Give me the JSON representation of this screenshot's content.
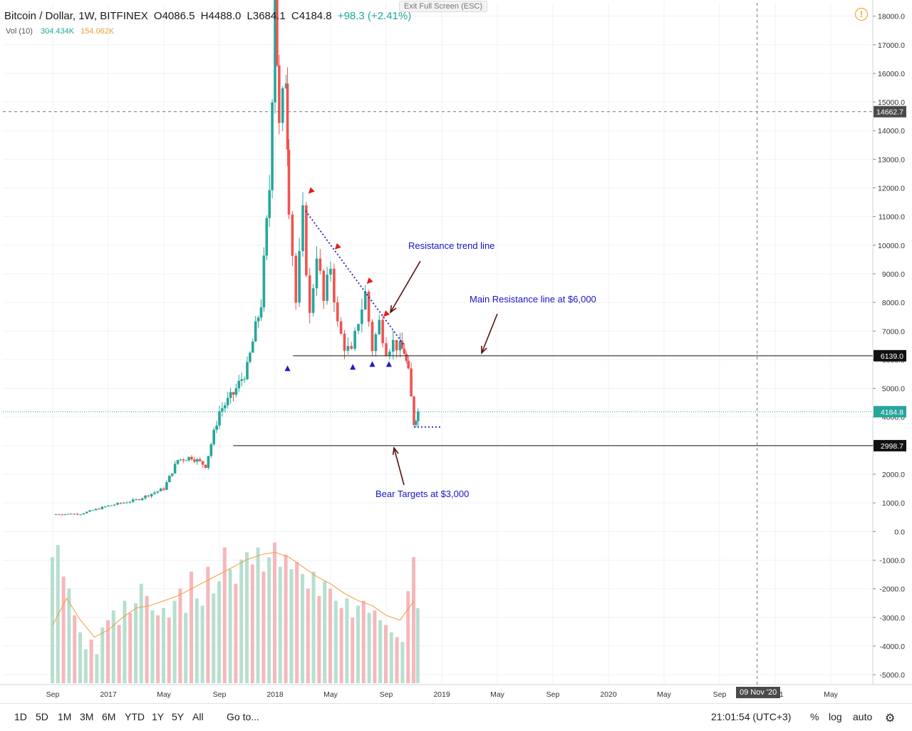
{
  "header": {
    "title": "Bitcoin / Dollar, 1W, BITFINEX",
    "open": "O4086.5",
    "high": "H4488.0",
    "low": "L3684.1",
    "close": "C4184.8",
    "change": "+98.3 (+2.41%)",
    "exit_fullscreen": "Exit Full Screen (ESC)"
  },
  "volume_legend": {
    "label": "Vol (10)",
    "v1": "304.434K",
    "v2": "154.062K"
  },
  "chart_data": {
    "type": "candlestick",
    "title": "Bitcoin / Dollar, 1W, BITFINEX",
    "ylim": [
      -5300,
      18600
    ],
    "y_ticks": [
      -5000,
      -4000,
      -3000,
      -2000,
      -1000,
      0,
      1000,
      2000,
      3000,
      4000,
      5000,
      6000,
      7000,
      8000,
      9000,
      10000,
      11000,
      12000,
      13000,
      14000,
      15000,
      16000,
      17000,
      18000
    ],
    "x_ticks": [
      {
        "label": "Sep",
        "t": 0
      },
      {
        "label": "2017",
        "t": 4
      },
      {
        "label": "May",
        "t": 8
      },
      {
        "label": "Sep",
        "t": 12
      },
      {
        "label": "2018",
        "t": 16
      },
      {
        "label": "May",
        "t": 20
      },
      {
        "label": "Sep",
        "t": 24
      },
      {
        "label": "2019",
        "t": 28
      },
      {
        "label": "May",
        "t": 32
      },
      {
        "label": "Sep",
        "t": 36
      },
      {
        "label": "2020",
        "t": 40
      },
      {
        "label": "May",
        "t": 44
      },
      {
        "label": "Sep",
        "t": 48
      },
      {
        "label": "2021",
        "t": 52
      },
      {
        "label": "May",
        "t": 56
      }
    ],
    "price_path": [
      [
        0,
        600
      ],
      [
        2,
        620
      ],
      [
        4,
        900
      ],
      [
        6,
        1100
      ],
      [
        8,
        1500
      ],
      [
        9,
        2500
      ],
      [
        10,
        2600
      ],
      [
        11,
        2300
      ],
      [
        12,
        4200
      ],
      [
        13,
        4800
      ],
      [
        14,
        5700
      ],
      [
        15,
        8000
      ],
      [
        15.6,
        12000
      ],
      [
        16,
        19000
      ],
      [
        16.3,
        14000
      ],
      [
        16.8,
        16000
      ],
      [
        17,
        11500
      ],
      [
        17.5,
        8000
      ],
      [
        18,
        11000
      ],
      [
        18.5,
        7500
      ],
      [
        19,
        9800
      ],
      [
        19.5,
        8000
      ],
      [
        20,
        9300
      ],
      [
        20.5,
        7200
      ],
      [
        21,
        6500
      ],
      [
        21.5,
        6200
      ],
      [
        22,
        7400
      ],
      [
        22.5,
        8300
      ],
      [
        23,
        6400
      ],
      [
        23.5,
        7300
      ],
      [
        24,
        6400
      ],
      [
        24.5,
        6600
      ],
      [
        25,
        6400
      ],
      [
        25.3,
        6300
      ],
      [
        25.6,
        5500
      ],
      [
        26,
        3800
      ],
      [
        26.3,
        4185
      ]
    ],
    "volume_bars": [
      {
        "t": 0.0,
        "v": 5.2,
        "up": true
      },
      {
        "t": 0.4,
        "v": 5.7,
        "up": true
      },
      {
        "t": 0.8,
        "v": 4.4,
        "up": false
      },
      {
        "t": 1.2,
        "v": 3.9,
        "up": true
      },
      {
        "t": 1.6,
        "v": 2.8,
        "up": false
      },
      {
        "t": 2.0,
        "v": 2.1,
        "up": true
      },
      {
        "t": 2.4,
        "v": 1.4,
        "up": true
      },
      {
        "t": 2.8,
        "v": 1.8,
        "up": false
      },
      {
        "t": 3.2,
        "v": 1.2,
        "up": true
      },
      {
        "t": 3.6,
        "v": 2.3,
        "up": true
      },
      {
        "t": 4.0,
        "v": 2.6,
        "up": false
      },
      {
        "t": 4.4,
        "v": 3.0,
        "up": true
      },
      {
        "t": 4.8,
        "v": 2.4,
        "up": false
      },
      {
        "t": 5.2,
        "v": 3.4,
        "up": true
      },
      {
        "t": 5.6,
        "v": 2.9,
        "up": false
      },
      {
        "t": 6.0,
        "v": 3.3,
        "up": true
      },
      {
        "t": 6.4,
        "v": 4.1,
        "up": true
      },
      {
        "t": 6.8,
        "v": 3.6,
        "up": false
      },
      {
        "t": 7.2,
        "v": 3.0,
        "up": true
      },
      {
        "t": 7.6,
        "v": 2.8,
        "up": false
      },
      {
        "t": 8.0,
        "v": 3.1,
        "up": true
      },
      {
        "t": 8.4,
        "v": 2.7,
        "up": false
      },
      {
        "t": 8.8,
        "v": 3.4,
        "up": true
      },
      {
        "t": 9.2,
        "v": 3.9,
        "up": false
      },
      {
        "t": 9.6,
        "v": 2.9,
        "up": true
      },
      {
        "t": 10.0,
        "v": 4.6,
        "up": false
      },
      {
        "t": 10.4,
        "v": 3.5,
        "up": true
      },
      {
        "t": 10.8,
        "v": 3.2,
        "up": true
      },
      {
        "t": 11.2,
        "v": 4.8,
        "up": false
      },
      {
        "t": 11.6,
        "v": 3.7,
        "up": true
      },
      {
        "t": 12.0,
        "v": 4.2,
        "up": true
      },
      {
        "t": 12.4,
        "v": 5.6,
        "up": false
      },
      {
        "t": 12.8,
        "v": 4.7,
        "up": true
      },
      {
        "t": 13.2,
        "v": 4.1,
        "up": false
      },
      {
        "t": 13.6,
        "v": 5.1,
        "up": true
      },
      {
        "t": 14.0,
        "v": 5.4,
        "up": true
      },
      {
        "t": 14.4,
        "v": 4.9,
        "up": false
      },
      {
        "t": 14.8,
        "v": 5.6,
        "up": true
      },
      {
        "t": 15.2,
        "v": 4.6,
        "up": false
      },
      {
        "t": 15.6,
        "v": 5.2,
        "up": true
      },
      {
        "t": 16.0,
        "v": 5.8,
        "up": false
      },
      {
        "t": 16.4,
        "v": 4.8,
        "up": true
      },
      {
        "t": 16.8,
        "v": 5.3,
        "up": false
      },
      {
        "t": 17.2,
        "v": 4.7,
        "up": true
      },
      {
        "t": 17.6,
        "v": 5.0,
        "up": false
      },
      {
        "t": 18.0,
        "v": 4.5,
        "up": true
      },
      {
        "t": 18.4,
        "v": 3.9,
        "up": false
      },
      {
        "t": 18.8,
        "v": 4.6,
        "up": true
      },
      {
        "t": 19.2,
        "v": 3.6,
        "up": false
      },
      {
        "t": 19.6,
        "v": 4.2,
        "up": true
      },
      {
        "t": 20.0,
        "v": 3.9,
        "up": false
      },
      {
        "t": 20.4,
        "v": 3.4,
        "up": true
      },
      {
        "t": 20.8,
        "v": 3.1,
        "up": false
      },
      {
        "t": 21.2,
        "v": 3.5,
        "up": true
      },
      {
        "t": 21.6,
        "v": 2.7,
        "up": false
      },
      {
        "t": 22.0,
        "v": 3.2,
        "up": true
      },
      {
        "t": 22.4,
        "v": 3.4,
        "up": false
      },
      {
        "t": 22.8,
        "v": 2.9,
        "up": true
      },
      {
        "t": 23.2,
        "v": 3.0,
        "up": false
      },
      {
        "t": 23.6,
        "v": 2.6,
        "up": true
      },
      {
        "t": 24.0,
        "v": 2.4,
        "up": false
      },
      {
        "t": 24.4,
        "v": 2.1,
        "up": true
      },
      {
        "t": 24.8,
        "v": 1.9,
        "up": false
      },
      {
        "t": 25.2,
        "v": 1.7,
        "up": true
      },
      {
        "t": 25.6,
        "v": 3.8,
        "up": false
      },
      {
        "t": 26.0,
        "v": 5.2,
        "up": false
      },
      {
        "t": 26.3,
        "v": 3.1,
        "up": true
      }
    ],
    "volume_ma": [
      [
        0,
        2.4
      ],
      [
        1,
        3.5
      ],
      [
        2,
        2.6
      ],
      [
        3,
        1.9
      ],
      [
        4,
        2.2
      ],
      [
        5,
        2.7
      ],
      [
        6,
        3.1
      ],
      [
        7,
        3.2
      ],
      [
        8,
        3.4
      ],
      [
        9,
        3.6
      ],
      [
        10,
        3.9
      ],
      [
        11,
        4.2
      ],
      [
        12,
        4.5
      ],
      [
        13,
        4.8
      ],
      [
        14,
        5.1
      ],
      [
        15,
        5.3
      ],
      [
        16,
        5.4
      ],
      [
        17,
        5.2
      ],
      [
        18,
        4.8
      ],
      [
        19,
        4.4
      ],
      [
        20,
        4.1
      ],
      [
        21,
        3.7
      ],
      [
        22,
        3.4
      ],
      [
        23,
        3.2
      ],
      [
        24,
        2.8
      ],
      [
        25,
        2.6
      ],
      [
        26,
        3.4
      ]
    ],
    "last_price": 4184.8,
    "crosshair_price": 14662.7,
    "levels": [
      {
        "label": "6139.0",
        "value": 6139.0
      },
      {
        "label": "2998.7",
        "value": 2998.7
      }
    ],
    "annotations": [
      "Resistance trend line",
      "Main Resistance line at $6,000",
      "Bear Targets at $3,000"
    ],
    "crosshair_date": "09 Nov '20"
  },
  "bottombar": {
    "timeframes": [
      "1D",
      "5D",
      "1M",
      "3M",
      "6M",
      "YTD",
      "1Y",
      "5Y",
      "All"
    ],
    "goto": "Go to...",
    "clock": "21:01:54 (UTC+3)",
    "percent": "%",
    "log": "log",
    "auto": "auto"
  },
  "colors": {
    "up": "#26a69a",
    "down": "#ef5350",
    "vol_up": "#b7dfcf",
    "vol_down": "#f5b8bc",
    "ma": "#f39c3c",
    "annotation": "#1515c8"
  }
}
